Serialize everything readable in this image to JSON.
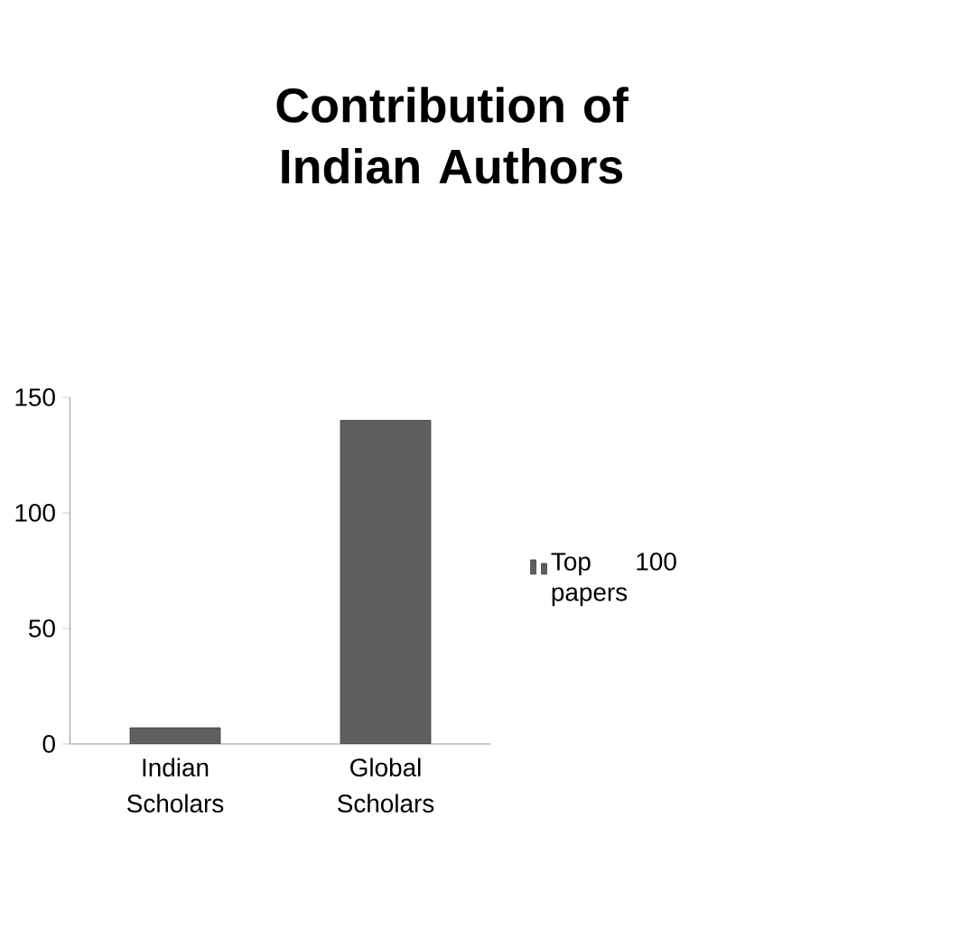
{
  "chart_data": {
    "type": "bar",
    "title": "Contribution of Indian Authors",
    "categories": [
      "Indian Scholars",
      "Global Scholars"
    ],
    "series": [
      {
        "name": "Top 100 papers",
        "color": "#5f5f5f",
        "values": [
          7,
          140
        ]
      }
    ],
    "ylim": [
      0,
      150
    ],
    "yticks": [
      0,
      50,
      100,
      150
    ],
    "grid": false,
    "legend": "right"
  }
}
